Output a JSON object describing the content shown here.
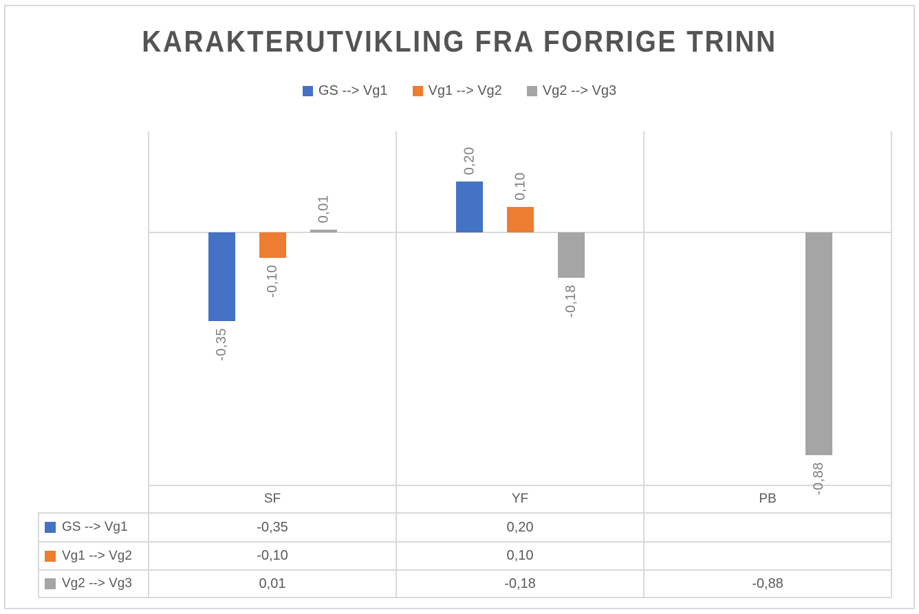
{
  "chart_data": {
    "type": "bar",
    "title": "KARAKTERUTVIKLING FRA FORRIGE TRINN",
    "categories": [
      "SF",
      "YF",
      "PB"
    ],
    "series": [
      {
        "name": "GS --> Vg1",
        "color": "#4472C4",
        "values": [
          -0.35,
          0.2,
          null
        ],
        "labels": [
          "-0,35",
          "0,20",
          ""
        ]
      },
      {
        "name": "Vg1 --> Vg2",
        "color": "#ED7D31",
        "values": [
          -0.1,
          0.1,
          null
        ],
        "labels": [
          "-0,10",
          "0,10",
          ""
        ]
      },
      {
        "name": "Vg2 --> Vg3",
        "color": "#A5A5A5",
        "values": [
          0.01,
          -0.18,
          -0.88
        ],
        "labels": [
          "0,01",
          "-0,18",
          "-0,88"
        ]
      }
    ],
    "ylim": [
      -1.0,
      0.4
    ],
    "grid": "vertical category boundary gridlines only, horizontal zero line",
    "legend_position": "top-center",
    "has_data_table": true,
    "decimal_separator": ",",
    "xlabel": "",
    "ylabel": "",
    "colors": {
      "grid": "#D9D9D9",
      "zero_line": "#D9D9D9",
      "title_text": "#545454",
      "table_text": "#595959",
      "data_label_text": "#7f7f7f",
      "background": "#FFFFFF"
    }
  }
}
